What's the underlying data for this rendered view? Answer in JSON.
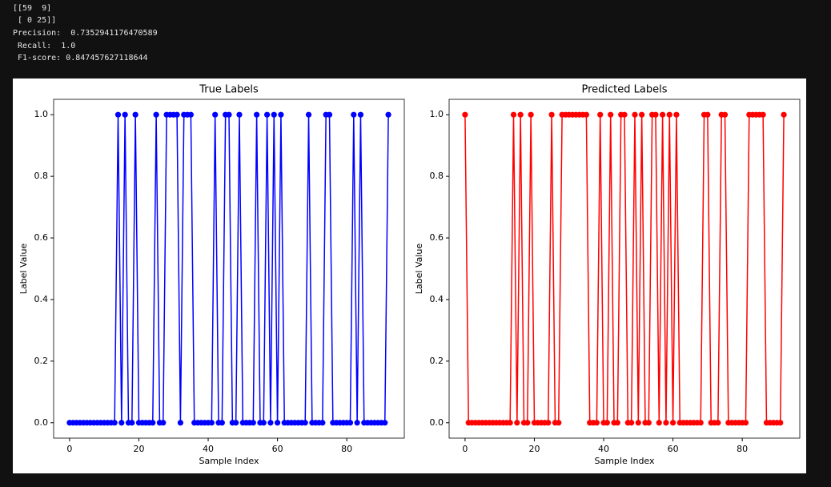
{
  "console": [
    "[[59  9]",
    " [ 0 25]]",
    "Precision:  0.7352941176470589",
    " Recall:  1.0",
    " F1-score: 0.847457627118644"
  ],
  "chart_data": [
    {
      "type": "line",
      "title": "True Labels",
      "xlabel": "Sample Index",
      "ylabel": "Label Value",
      "color": "#0000ff",
      "x": [
        0,
        1,
        2,
        3,
        4,
        5,
        6,
        7,
        8,
        9,
        10,
        11,
        12,
        13,
        14,
        15,
        16,
        17,
        18,
        19,
        20,
        21,
        22,
        23,
        24,
        25,
        26,
        27,
        28,
        29,
        30,
        31,
        32,
        33,
        34,
        35,
        36,
        37,
        38,
        39,
        40,
        41,
        42,
        43,
        44,
        45,
        46,
        47,
        48,
        49,
        50,
        51,
        52,
        53,
        54,
        55,
        56,
        57,
        58,
        59,
        60,
        61,
        62,
        63,
        64,
        65,
        66,
        67,
        68,
        69,
        70,
        71,
        72,
        73,
        74,
        75,
        76,
        77,
        78,
        79,
        80,
        81,
        82,
        83,
        84,
        85,
        86,
        87,
        88,
        89,
        90,
        91,
        92
      ],
      "values": [
        0,
        0,
        0,
        0,
        0,
        0,
        0,
        0,
        0,
        0,
        0,
        0,
        0,
        0,
        1,
        0,
        1,
        0,
        0,
        1,
        0,
        0,
        0,
        0,
        0,
        1,
        0,
        0,
        1,
        1,
        1,
        1,
        0,
        1,
        1,
        1,
        0,
        0,
        0,
        0,
        0,
        0,
        1,
        0,
        0,
        1,
        1,
        0,
        0,
        1,
        0,
        0,
        0,
        0,
        1,
        0,
        0,
        1,
        0,
        1,
        0,
        1,
        0,
        0,
        0,
        0,
        0,
        0,
        0,
        1,
        0,
        0,
        0,
        0,
        1,
        1,
        0,
        0,
        0,
        0,
        0,
        0,
        1,
        0,
        1,
        0,
        0,
        0,
        0,
        0,
        0,
        0,
        1
      ],
      "xlim": [
        -4.6,
        96.6
      ],
      "ylim": [
        -0.05,
        1.05
      ],
      "xticks": [
        0,
        20,
        40,
        60,
        80
      ],
      "yticks": [
        {
          "value": 0,
          "label": "0.0"
        },
        0.2,
        0.4,
        0.6,
        0.8,
        {
          "value": 1,
          "label": "1.0"
        }
      ]
    },
    {
      "type": "line",
      "title": "Predicted Labels",
      "xlabel": "Sample Index",
      "ylabel": "Label Value",
      "color": "#ff0000",
      "x": [
        0,
        1,
        2,
        3,
        4,
        5,
        6,
        7,
        8,
        9,
        10,
        11,
        12,
        13,
        14,
        15,
        16,
        17,
        18,
        19,
        20,
        21,
        22,
        23,
        24,
        25,
        26,
        27,
        28,
        29,
        30,
        31,
        32,
        33,
        34,
        35,
        36,
        37,
        38,
        39,
        40,
        41,
        42,
        43,
        44,
        45,
        46,
        47,
        48,
        49,
        50,
        51,
        52,
        53,
        54,
        55,
        56,
        57,
        58,
        59,
        60,
        61,
        62,
        63,
        64,
        65,
        66,
        67,
        68,
        69,
        70,
        71,
        72,
        73,
        74,
        75,
        76,
        77,
        78,
        79,
        80,
        81,
        82,
        83,
        84,
        85,
        86,
        87,
        88,
        89,
        90,
        91,
        92
      ],
      "values": [
        1,
        0,
        0,
        0,
        0,
        0,
        0,
        0,
        0,
        0,
        0,
        0,
        0,
        0,
        1,
        0,
        1,
        0,
        0,
        1,
        0,
        0,
        0,
        0,
        0,
        1,
        0,
        0,
        1,
        1,
        1,
        1,
        1,
        1,
        1,
        1,
        0,
        0,
        0,
        1,
        0,
        0,
        1,
        0,
        0,
        1,
        1,
        0,
        0,
        1,
        0,
        1,
        0,
        0,
        1,
        1,
        0,
        1,
        0,
        1,
        0,
        1,
        0,
        0,
        0,
        0,
        0,
        0,
        0,
        1,
        1,
        0,
        0,
        0,
        1,
        1,
        0,
        0,
        0,
        0,
        0,
        0,
        1,
        1,
        1,
        1,
        1,
        0,
        0,
        0,
        0,
        0,
        1
      ],
      "xlim": [
        -4.6,
        96.6
      ],
      "ylim": [
        -0.05,
        1.05
      ],
      "xticks": [
        0,
        20,
        40,
        60,
        80
      ],
      "yticks": [
        {
          "value": 0,
          "label": "0.0"
        },
        0.2,
        0.4,
        0.6,
        0.8,
        {
          "value": 1,
          "label": "1.0"
        }
      ]
    }
  ]
}
